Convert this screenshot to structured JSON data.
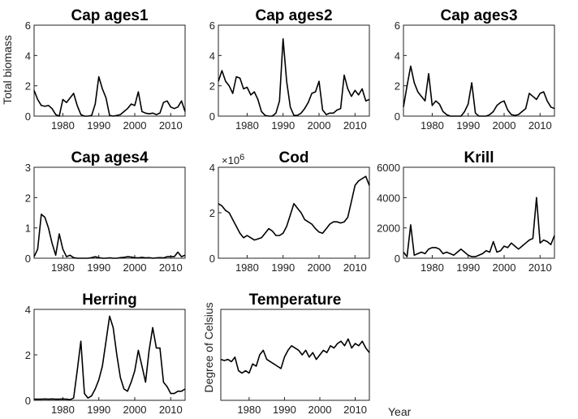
{
  "figure": {
    "xlabel": "Year",
    "ylabel_left": "Total biomass",
    "ylabel_temperature": "Degree of Celsius"
  },
  "chart_data": [
    {
      "type": "line",
      "title": "Cap ages1",
      "xlim": [
        1972,
        2014
      ],
      "ylim": [
        0,
        6
      ],
      "xticks": [
        1980,
        1990,
        2000,
        2010
      ],
      "yticks": [
        0,
        2,
        4,
        6
      ],
      "x": [
        1972,
        1973,
        1974,
        1975,
        1976,
        1977,
        1978,
        1979,
        1980,
        1981,
        1982,
        1983,
        1984,
        1985,
        1986,
        1987,
        1988,
        1989,
        1990,
        1991,
        1992,
        1993,
        1994,
        1995,
        1996,
        1997,
        1998,
        1999,
        2000,
        2001,
        2002,
        2003,
        2004,
        2005,
        2006,
        2007,
        2008,
        2009,
        2010,
        2011,
        2012,
        2013,
        2014
      ],
      "y": [
        1.7,
        1.1,
        0.7,
        0.65,
        0.7,
        0.5,
        0.1,
        0.0,
        1.1,
        0.9,
        1.2,
        1.5,
        0.7,
        0.1,
        0.0,
        0.0,
        0.05,
        0.8,
        2.6,
        1.8,
        1.2,
        0.05,
        0.0,
        0.05,
        0.1,
        0.3,
        0.5,
        0.8,
        0.7,
        1.6,
        0.3,
        0.2,
        0.15,
        0.2,
        0.1,
        0.2,
        0.9,
        1.0,
        0.6,
        0.5,
        0.6,
        1.0,
        0.3
      ]
    },
    {
      "type": "line",
      "title": "Cap ages2",
      "xlim": [
        1972,
        2014
      ],
      "ylim": [
        0,
        6
      ],
      "xticks": [
        1980,
        1990,
        2000,
        2010
      ],
      "yticks": [
        0,
        2,
        4,
        6
      ],
      "x": [
        1972,
        1973,
        1974,
        1975,
        1976,
        1977,
        1978,
        1979,
        1980,
        1981,
        1982,
        1983,
        1984,
        1985,
        1986,
        1987,
        1988,
        1989,
        1990,
        1991,
        1992,
        1993,
        1994,
        1995,
        1996,
        1997,
        1998,
        1999,
        2000,
        2001,
        2002,
        2003,
        2004,
        2005,
        2006,
        2007,
        2008,
        2009,
        2010,
        2011,
        2012,
        2013,
        2014
      ],
      "y": [
        2.3,
        3.0,
        2.3,
        2.0,
        1.5,
        2.6,
        2.5,
        1.8,
        1.9,
        1.4,
        1.6,
        1.1,
        0.3,
        0.05,
        0.0,
        0.0,
        0.2,
        1.0,
        5.1,
        2.3,
        0.6,
        0.05,
        0.05,
        0.2,
        0.5,
        0.9,
        1.5,
        1.6,
        2.3,
        0.4,
        0.1,
        0.2,
        0.2,
        0.4,
        0.5,
        2.7,
        1.8,
        1.3,
        1.7,
        1.4,
        1.8,
        1.0,
        1.1
      ]
    },
    {
      "type": "line",
      "title": "Cap ages3",
      "xlim": [
        1972,
        2014
      ],
      "ylim": [
        0,
        6
      ],
      "xticks": [
        1980,
        1990,
        2000,
        2010
      ],
      "yticks": [
        0,
        2,
        4,
        6
      ],
      "x": [
        1972,
        1973,
        1974,
        1975,
        1976,
        1977,
        1978,
        1979,
        1980,
        1981,
        1982,
        1983,
        1984,
        1985,
        1986,
        1987,
        1988,
        1989,
        1990,
        1991,
        1992,
        1993,
        1994,
        1995,
        1996,
        1997,
        1998,
        1999,
        2000,
        2001,
        2002,
        2003,
        2004,
        2005,
        2006,
        2007,
        2008,
        2009,
        2010,
        2011,
        2012,
        2013,
        2014
      ],
      "y": [
        0.6,
        2.0,
        3.3,
        2.2,
        1.6,
        1.3,
        1.0,
        2.8,
        0.7,
        1.0,
        0.8,
        0.3,
        0.1,
        0.0,
        0.0,
        0.0,
        0.0,
        0.3,
        0.8,
        2.2,
        0.2,
        0.0,
        0.0,
        0.0,
        0.1,
        0.3,
        0.7,
        0.9,
        1.0,
        0.4,
        0.1,
        0.05,
        0.1,
        0.3,
        0.5,
        1.5,
        1.3,
        1.1,
        1.5,
        1.6,
        1.0,
        0.6,
        0.5
      ]
    },
    {
      "type": "line",
      "title": "Cap ages4",
      "xlim": [
        1972,
        2014
      ],
      "ylim": [
        0,
        3
      ],
      "xticks": [
        1980,
        1990,
        2000,
        2010
      ],
      "yticks": [
        0,
        1,
        2,
        3
      ],
      "x": [
        1972,
        1973,
        1974,
        1975,
        1976,
        1977,
        1978,
        1979,
        1980,
        1981,
        1982,
        1983,
        1984,
        1985,
        1986,
        1987,
        1988,
        1989,
        1990,
        1991,
        1992,
        1993,
        1994,
        1995,
        1996,
        1997,
        1998,
        1999,
        2000,
        2001,
        2002,
        2003,
        2004,
        2005,
        2006,
        2007,
        2008,
        2009,
        2010,
        2011,
        2012,
        2013,
        2014
      ],
      "y": [
        0.05,
        0.3,
        1.45,
        1.35,
        1.0,
        0.5,
        0.1,
        0.8,
        0.3,
        0.05,
        0.1,
        0.02,
        0.0,
        0.0,
        0.0,
        0.0,
        0.02,
        0.05,
        0.02,
        0.0,
        0.0,
        0.01,
        0.0,
        0.0,
        0.02,
        0.03,
        0.05,
        0.04,
        0.02,
        0.01,
        0.03,
        0.01,
        0.02,
        0.0,
        0.01,
        0.02,
        0.01,
        0.05,
        0.05,
        0.05,
        0.2,
        0.05,
        0.1
      ]
    },
    {
      "type": "line",
      "title": "Cod",
      "xlim": [
        1972,
        2014
      ],
      "ylim": [
        0,
        4
      ],
      "xticks": [
        1980,
        1990,
        2000,
        2010
      ],
      "yticks": [
        0,
        2,
        4
      ],
      "scale_label": "×10^6",
      "x": [
        1972,
        1973,
        1974,
        1975,
        1976,
        1977,
        1978,
        1979,
        1980,
        1981,
        1982,
        1983,
        1984,
        1985,
        1986,
        1987,
        1988,
        1989,
        1990,
        1991,
        1992,
        1993,
        1994,
        1995,
        1996,
        1997,
        1998,
        1999,
        2000,
        2001,
        2002,
        2003,
        2004,
        2005,
        2006,
        2007,
        2008,
        2009,
        2010,
        2011,
        2012,
        2013,
        2014
      ],
      "y": [
        2.4,
        2.3,
        2.1,
        2.0,
        1.7,
        1.4,
        1.1,
        0.9,
        1.0,
        0.9,
        0.8,
        0.85,
        0.9,
        1.1,
        1.3,
        1.2,
        1.0,
        1.0,
        1.1,
        1.4,
        1.9,
        2.4,
        2.2,
        2.0,
        1.7,
        1.6,
        1.5,
        1.3,
        1.15,
        1.1,
        1.3,
        1.5,
        1.6,
        1.6,
        1.55,
        1.6,
        1.8,
        2.5,
        3.2,
        3.4,
        3.5,
        3.6,
        3.2
      ]
    },
    {
      "type": "line",
      "title": "Krill",
      "xlim": [
        1972,
        2014
      ],
      "ylim": [
        0,
        6000
      ],
      "xticks": [
        1980,
        1990,
        2000,
        2010
      ],
      "yticks": [
        0,
        2000,
        4000,
        6000
      ],
      "x": [
        1972,
        1973,
        1974,
        1975,
        1976,
        1977,
        1978,
        1979,
        1980,
        1981,
        1982,
        1983,
        1984,
        1985,
        1986,
        1987,
        1988,
        1989,
        1990,
        1991,
        1992,
        1993,
        1994,
        1995,
        1996,
        1997,
        1998,
        1999,
        2000,
        2001,
        2002,
        2003,
        2004,
        2005,
        2006,
        2007,
        2008,
        2009,
        2010,
        2011,
        2012,
        2013,
        2014
      ],
      "y": [
        400,
        100,
        2200,
        200,
        300,
        400,
        300,
        600,
        700,
        700,
        600,
        300,
        400,
        300,
        200,
        400,
        600,
        400,
        200,
        100,
        100,
        200,
        300,
        500,
        400,
        1100,
        400,
        500,
        800,
        700,
        1000,
        800,
        600,
        800,
        1000,
        1200,
        1300,
        4000,
        1000,
        1200,
        1100,
        900,
        1500
      ]
    },
    {
      "type": "line",
      "title": "Herring",
      "xlim": [
        1972,
        2014
      ],
      "ylim": [
        0,
        4
      ],
      "xticks": [
        1980,
        1990,
        2000,
        2010
      ],
      "yticks": [
        0,
        2,
        4
      ],
      "x": [
        1972,
        1973,
        1974,
        1975,
        1976,
        1977,
        1978,
        1979,
        1980,
        1981,
        1982,
        1983,
        1984,
        1985,
        1986,
        1987,
        1988,
        1989,
        1990,
        1991,
        1992,
        1993,
        1994,
        1995,
        1996,
        1997,
        1998,
        1999,
        2000,
        2001,
        2002,
        2003,
        2004,
        2005,
        2006,
        2007,
        2008,
        2009,
        2010,
        2011,
        2012,
        2013,
        2014
      ],
      "y": [
        0.05,
        0.05,
        0.05,
        0.06,
        0.05,
        0.06,
        0.05,
        0.05,
        0.06,
        0.05,
        0.03,
        0.1,
        1.3,
        2.6,
        0.3,
        0.1,
        0.2,
        0.5,
        0.9,
        1.5,
        2.6,
        3.7,
        3.2,
        2.0,
        1.0,
        0.5,
        0.4,
        0.8,
        1.3,
        2.2,
        1.5,
        0.8,
        2.2,
        3.2,
        2.3,
        2.3,
        0.8,
        0.6,
        0.3,
        0.3,
        0.4,
        0.4,
        0.5
      ]
    },
    {
      "type": "line",
      "title": "Temperature",
      "xlim": [
        1972,
        2014
      ],
      "ylim": [
        4,
        8
      ],
      "xticks": [
        1980,
        1990,
        2000,
        2010
      ],
      "yticks": [],
      "x": [
        1972,
        1973,
        1974,
        1975,
        1976,
        1977,
        1978,
        1979,
        1980,
        1981,
        1982,
        1983,
        1984,
        1985,
        1986,
        1987,
        1988,
        1989,
        1990,
        1991,
        1992,
        1993,
        1994,
        1995,
        1996,
        1997,
        1998,
        1999,
        2000,
        2001,
        2002,
        2003,
        2004,
        2005,
        2006,
        2007,
        2008,
        2009,
        2010,
        2011,
        2012,
        2013,
        2014
      ],
      "y": [
        5.8,
        5.75,
        5.8,
        5.7,
        5.9,
        5.3,
        5.2,
        5.3,
        5.2,
        5.6,
        5.5,
        6.0,
        6.2,
        5.8,
        5.7,
        5.6,
        5.5,
        5.4,
        5.9,
        6.2,
        6.4,
        6.3,
        6.2,
        6.0,
        6.2,
        5.9,
        6.1,
        5.8,
        6.0,
        6.2,
        6.1,
        6.4,
        6.3,
        6.5,
        6.6,
        6.4,
        6.7,
        6.3,
        6.5,
        6.4,
        6.6,
        6.3,
        6.1
      ]
    }
  ]
}
